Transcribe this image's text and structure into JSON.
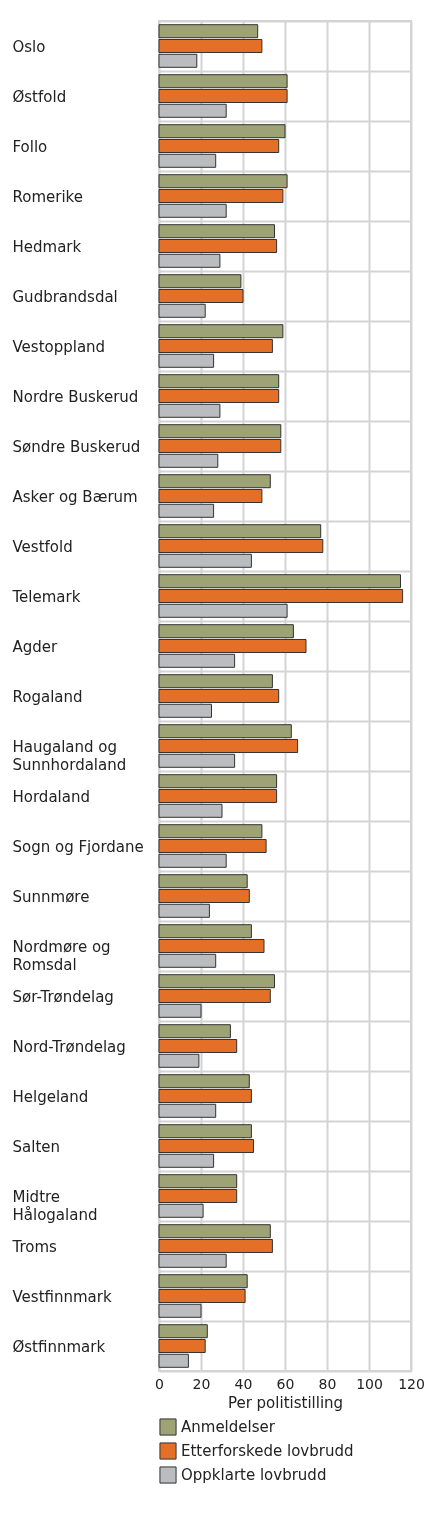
{
  "chart_data": {
    "type": "bar",
    "orientation": "horizontal",
    "xlabel": "Per politistilling",
    "categories": [
      "Oslo",
      "Østfold",
      "Follo",
      "Romerike",
      "Hedmark",
      "Gudbrandsdal",
      "Vestoppland",
      "Nordre Buskerud",
      "Søndre Buskerud",
      "Asker og Bærum",
      "Vestfold",
      "Telemark",
      "Agder",
      "Rogaland",
      "Haugaland og Sunnhordaland",
      "Hordaland",
      "Sogn og Fjordane",
      "Sunnmøre",
      "Nordmøre og Romsdal",
      "Sør-Trøndelag",
      "Nord-Trøndelag",
      "Helgeland",
      "Salten",
      "Midtre Hålogaland",
      "Troms",
      "Vestfinnmark",
      "Østfinnmark"
    ],
    "series": [
      {
        "name": "Anmeldelser",
        "color": "#9da374",
        "values": [
          47,
          61,
          60,
          61,
          55,
          39,
          59,
          57,
          58,
          53,
          77,
          115,
          64,
          54,
          63,
          56,
          49,
          42,
          44,
          55,
          34,
          43,
          44,
          37,
          53,
          42,
          23
        ]
      },
      {
        "name": "Etterforskede lovbrudd",
        "color": "#e37026",
        "values": [
          49,
          61,
          57,
          59,
          56,
          40,
          54,
          57,
          58,
          49,
          78,
          116,
          70,
          57,
          66,
          56,
          51,
          43,
          50,
          53,
          37,
          44,
          45,
          37,
          54,
          41,
          22
        ]
      },
      {
        "name": "Oppklarte lovbrudd",
        "color": "#bbbcbf",
        "values": [
          18,
          32,
          27,
          32,
          29,
          22,
          26,
          29,
          28,
          26,
          44,
          61,
          36,
          25,
          36,
          30,
          32,
          24,
          27,
          20,
          19,
          27,
          26,
          21,
          32,
          20,
          14
        ]
      }
    ],
    "xlim": [
      0,
      120
    ],
    "xticks": [
      0,
      20,
      40,
      60,
      80,
      100,
      120
    ],
    "grid": true,
    "legend": "bottom"
  }
}
